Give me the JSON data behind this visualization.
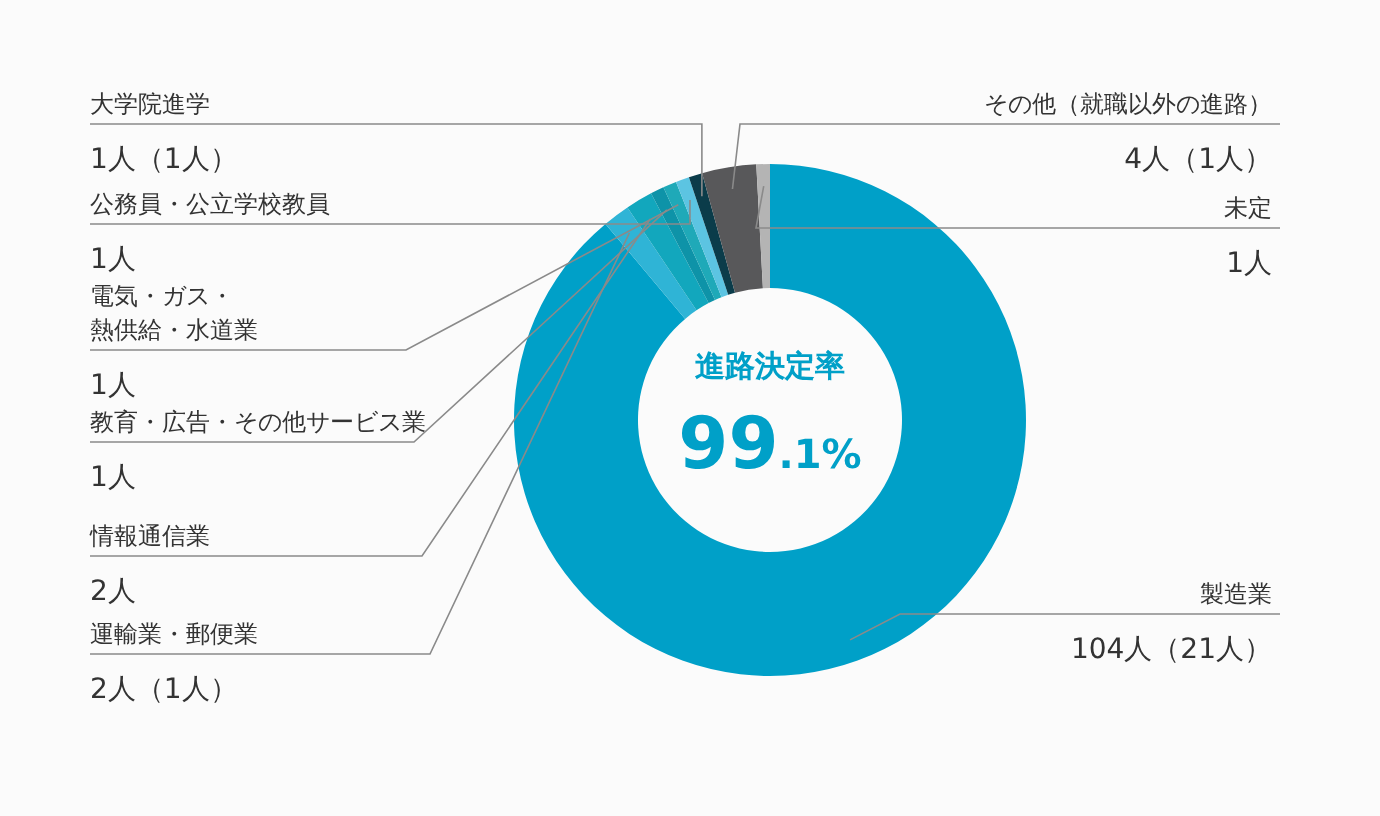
{
  "chart_data": {
    "type": "donut",
    "categories": [
      "製造業",
      "運輸業・郵便業",
      "情報通信業",
      "教育・広告・その他サービス業",
      "電気・ガス・熱供給・水道業",
      "公務員・公立学校教員",
      "大学院進学",
      "その他（就職以外の進路）",
      "未定"
    ],
    "values": [
      104,
      2,
      2,
      1,
      1,
      1,
      1,
      4,
      1
    ],
    "value_labels": [
      "104人（21人）",
      "2人（1人）",
      "2人",
      "1人",
      "1人",
      "1人",
      "1人（1人）",
      "4人（1人）",
      "1人"
    ],
    "colors": [
      "#00a0c8",
      "#2fb4d6",
      "#12a7bd",
      "#0e93a8",
      "#1fa9b8",
      "#5cc4e2",
      "#0b3c4a",
      "#58585a",
      "#b4b4b4"
    ],
    "annotations": [
      "進路決定率",
      "99.1%"
    ]
  }
}
